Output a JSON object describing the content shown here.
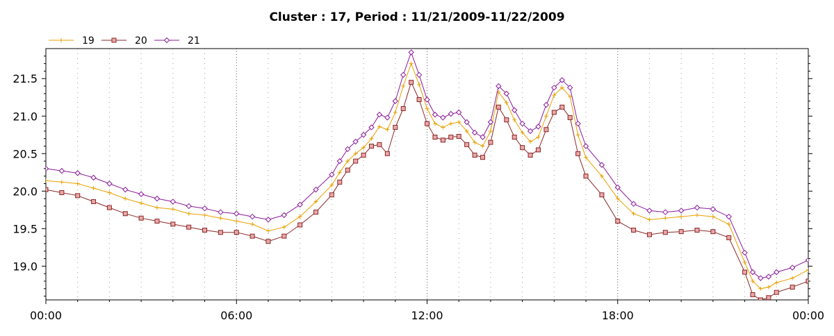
{
  "chart_data": {
    "type": "line",
    "title": "Cluster : 17, Period : 11/21/2009-11/22/2009",
    "xlabel": "",
    "ylabel": "",
    "xlim": [
      0,
      24
    ],
    "ylim": [
      18.55,
      21.9
    ],
    "x_ticks": [
      {
        "x": 0,
        "label": "00:00"
      },
      {
        "x": 6,
        "label": "06:00"
      },
      {
        "x": 12,
        "label": "12:00"
      },
      {
        "x": 18,
        "label": "18:00"
      },
      {
        "x": 24,
        "label": "00:00"
      }
    ],
    "y_ticks": [
      {
        "y": 19.0,
        "label": "19.0"
      },
      {
        "y": 19.5,
        "label": "19.5"
      },
      {
        "y": 20.0,
        "label": "20.0"
      },
      {
        "y": 20.5,
        "label": "20.5"
      },
      {
        "y": 21.0,
        "label": "21.0"
      },
      {
        "y": 21.5,
        "label": "21.5"
      }
    ],
    "grid": true,
    "legend": "top-left",
    "x": [
      0,
      0.5,
      1,
      1.5,
      2,
      2.5,
      3,
      3.5,
      4,
      4.5,
      5,
      5.5,
      6,
      6.5,
      7,
      7.5,
      8,
      8.5,
      9,
      9.25,
      9.5,
      9.75,
      10,
      10.25,
      10.5,
      10.75,
      11,
      11.25,
      11.5,
      11.75,
      12,
      12.25,
      12.5,
      12.75,
      13,
      13.25,
      13.5,
      13.75,
      14,
      14.25,
      14.5,
      14.75,
      15,
      15.25,
      15.5,
      15.75,
      16,
      16.25,
      16.5,
      16.75,
      17,
      17.5,
      18,
      18.5,
      19,
      19.5,
      20,
      20.5,
      21,
      21.5,
      22,
      22.25,
      22.5,
      22.75,
      23,
      23.5,
      24
    ],
    "series": [
      {
        "name": "19",
        "color": "#E8A000",
        "marker": "plus",
        "values": [
          20.14,
          20.12,
          20.1,
          20.04,
          19.98,
          19.9,
          19.84,
          19.78,
          19.76,
          19.7,
          19.68,
          19.64,
          19.6,
          19.56,
          19.47,
          19.52,
          19.66,
          19.86,
          20.08,
          20.25,
          20.4,
          20.5,
          20.58,
          20.7,
          20.86,
          20.82,
          21.05,
          21.4,
          21.7,
          21.42,
          21.1,
          20.9,
          20.85,
          20.9,
          20.92,
          20.8,
          20.65,
          20.6,
          20.8,
          21.32,
          21.18,
          20.95,
          20.78,
          20.66,
          20.72,
          21.0,
          21.28,
          21.38,
          21.26,
          20.75,
          20.45,
          20.2,
          19.9,
          19.7,
          19.62,
          19.64,
          19.66,
          19.68,
          19.66,
          19.56,
          19.05,
          18.8,
          18.7,
          18.72,
          18.78,
          18.84,
          18.95
        ]
      },
      {
        "name": "20",
        "color": "#8B2525",
        "marker": "square",
        "values": [
          20.02,
          19.98,
          19.94,
          19.86,
          19.78,
          19.7,
          19.64,
          19.6,
          19.56,
          19.52,
          19.48,
          19.45,
          19.45,
          19.4,
          19.33,
          19.4,
          19.55,
          19.72,
          19.95,
          20.12,
          20.28,
          20.4,
          20.48,
          20.6,
          20.62,
          20.5,
          20.85,
          21.1,
          21.45,
          21.22,
          20.9,
          20.72,
          20.68,
          20.72,
          20.73,
          20.62,
          20.48,
          20.45,
          20.65,
          21.12,
          20.95,
          20.72,
          20.58,
          20.48,
          20.55,
          20.82,
          21.05,
          21.12,
          20.98,
          20.5,
          20.2,
          19.95,
          19.6,
          19.48,
          19.42,
          19.45,
          19.46,
          19.48,
          19.46,
          19.38,
          18.92,
          18.62,
          18.55,
          18.58,
          18.65,
          18.72,
          18.8
        ]
      },
      {
        "name": "21",
        "color": "#8A1A9A",
        "marker": "diamond",
        "values": [
          20.3,
          20.27,
          20.24,
          20.18,
          20.1,
          20.02,
          19.96,
          19.9,
          19.86,
          19.8,
          19.77,
          19.72,
          19.7,
          19.66,
          19.62,
          19.68,
          19.82,
          20.02,
          20.22,
          20.4,
          20.56,
          20.66,
          20.75,
          20.85,
          21.02,
          20.98,
          21.2,
          21.55,
          21.85,
          21.55,
          21.22,
          21.02,
          20.98,
          21.03,
          21.05,
          20.92,
          20.78,
          20.72,
          20.92,
          21.4,
          21.3,
          21.08,
          20.9,
          20.8,
          20.86,
          21.15,
          21.38,
          21.48,
          21.38,
          20.9,
          20.6,
          20.35,
          20.05,
          19.83,
          19.74,
          19.72,
          19.74,
          19.78,
          19.76,
          19.66,
          19.18,
          18.92,
          18.84,
          18.86,
          18.92,
          18.98,
          19.08
        ]
      }
    ]
  }
}
